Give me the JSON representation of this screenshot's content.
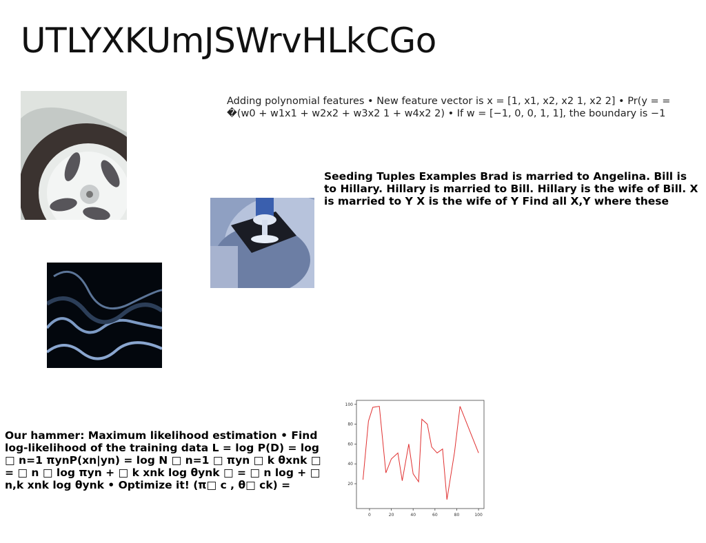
{
  "title": "UTLYXKUmJSWrvHLkCGo",
  "paragraphs": {
    "polynomial": "Adding polynomial features • New feature vector is x = [1, x1, x2, x2 1, x2 2] • Pr(y = = �(w0 + w1x1 + w2x2 + w3x2 1 + w4x2 2) • If w = [−1, 0, 0, 1, 1], the boundary is −1",
    "seeding": "Seeding Tuples Examples Brad is married to Angelina. Bill is to Hillary. Hillary is married to Bill. Hillary is the wife of Bill. X is married to Y X is the wife of Y Find all X,Y where these",
    "hammer": "Our hammer: Maximum likelihood estimation • Find log-likelihood of the training data L = log P(D) = log □ n=1 πynP(xn|yn) = log N □ n=1 □ πyn □ k θxnk □ = □ n □ log πyn + □ k xnk log θynk □ = □ n log + □ n,k xnk log θynk • Optimize it! (π□ c , θ□ ck) ="
  },
  "images": {
    "tire": "car-wheel-photo",
    "glass": "glass-on-coaster-photo",
    "waves": "abstract-blue-waves-photo"
  },
  "chart_data": {
    "type": "line",
    "x": [
      -5,
      0,
      5,
      10,
      15,
      20,
      25,
      30,
      35,
      40,
      45,
      50,
      55,
      60,
      65,
      70,
      75,
      80,
      85,
      90,
      95,
      100
    ],
    "series": [
      {
        "values": [
          24,
          83,
          97,
          98,
          31,
          45,
          51,
          23,
          60,
          30,
          22,
          85,
          80,
          57,
          51,
          55,
          4,
          52,
          98,
          51
        ],
        "x": [
          -6,
          -1,
          3,
          9,
          15,
          20,
          26,
          30,
          36,
          40,
          45,
          48,
          53,
          57,
          62,
          67,
          71,
          78,
          83,
          100
        ]
      }
    ],
    "xticks": [
      "0",
      "20",
      "40",
      "60",
      "80",
      "100"
    ],
    "yticks": [
      "20",
      "40",
      "60",
      "80",
      "100"
    ],
    "xlim": [
      -12,
      105
    ],
    "ylim": [
      -5,
      104
    ],
    "line_color": "#e03030",
    "title": "",
    "xlabel": "",
    "ylabel": ""
  }
}
